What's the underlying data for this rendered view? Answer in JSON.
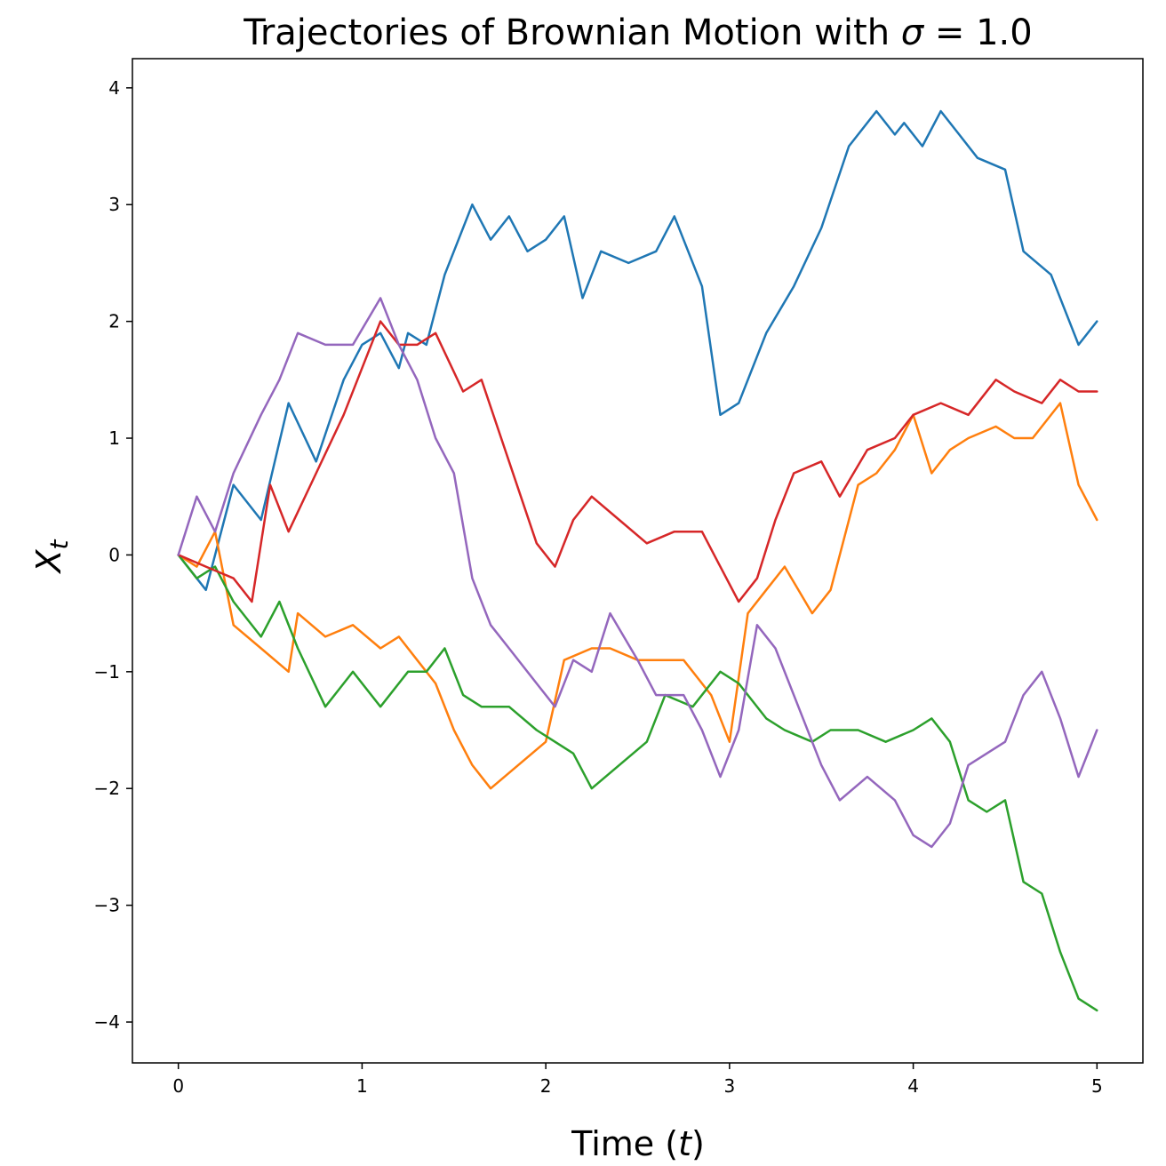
{
  "chart_data": {
    "type": "line",
    "title": "Trajectories of Brownian Motion with σ = 1.0",
    "title_parts": {
      "prefix": "Trajectories of Brownian Motion with ",
      "symbol": "σ",
      "suffix": " = 1.0"
    },
    "xlabel": "Time (t)",
    "xlabel_parts": {
      "prefix": "Time (",
      "symbol": "t",
      "suffix": ")"
    },
    "ylabel": "X_t",
    "ylabel_parts": {
      "base": "X",
      "subscript": "t"
    },
    "xlim": [
      -0.25,
      5.25
    ],
    "ylim": [
      -4.35,
      4.25
    ],
    "x_ticks": [
      0,
      1,
      2,
      3,
      4,
      5
    ],
    "y_ticks": [
      -4,
      -3,
      -2,
      -1,
      0,
      1,
      2,
      3,
      4
    ],
    "x_tick_labels": [
      "0",
      "1",
      "2",
      "3",
      "4",
      "5"
    ],
    "y_tick_labels": [
      "−4",
      "−3",
      "−2",
      "−1",
      "0",
      "1",
      "2",
      "3",
      "4"
    ],
    "grid": false,
    "legend": "none",
    "series": [
      {
        "color": "#1f77b4",
        "x": [
          0,
          0.15,
          0.3,
          0.45,
          0.6,
          0.75,
          0.9,
          1.0,
          1.1,
          1.2,
          1.25,
          1.35,
          1.45,
          1.6,
          1.7,
          1.8,
          1.9,
          2.0,
          2.1,
          2.2,
          2.3,
          2.45,
          2.6,
          2.7,
          2.85,
          2.95,
          3.05,
          3.2,
          3.35,
          3.5,
          3.65,
          3.8,
          3.9,
          3.95,
          4.05,
          4.15,
          4.25,
          4.35,
          4.5,
          4.6,
          4.75,
          4.9,
          5.0
        ],
        "y": [
          0.0,
          -0.3,
          0.6,
          0.3,
          1.3,
          0.8,
          1.5,
          1.8,
          1.9,
          1.6,
          1.9,
          1.8,
          2.4,
          3.0,
          2.7,
          2.9,
          2.6,
          2.7,
          2.9,
          2.2,
          2.6,
          2.5,
          2.6,
          2.9,
          2.3,
          1.2,
          1.3,
          1.9,
          2.3,
          2.8,
          3.5,
          3.8,
          3.6,
          3.7,
          3.5,
          3.8,
          3.6,
          3.4,
          3.3,
          2.6,
          2.4,
          1.8,
          2.0
        ]
      },
      {
        "color": "#ff7f0e",
        "x": [
          0,
          0.1,
          0.2,
          0.3,
          0.45,
          0.6,
          0.65,
          0.8,
          0.95,
          1.1,
          1.2,
          1.3,
          1.4,
          1.5,
          1.6,
          1.7,
          1.85,
          2.0,
          2.1,
          2.25,
          2.35,
          2.5,
          2.65,
          2.75,
          2.9,
          3.0,
          3.1,
          3.2,
          3.3,
          3.45,
          3.55,
          3.7,
          3.8,
          3.9,
          4.0,
          4.1,
          4.2,
          4.3,
          4.45,
          4.55,
          4.65,
          4.8,
          4.9,
          5.0
        ],
        "y": [
          0.0,
          -0.1,
          0.2,
          -0.6,
          -0.8,
          -1.0,
          -0.5,
          -0.7,
          -0.6,
          -0.8,
          -0.7,
          -0.9,
          -1.1,
          -1.5,
          -1.8,
          -2.0,
          -1.8,
          -1.6,
          -0.9,
          -0.8,
          -0.8,
          -0.9,
          -0.9,
          -0.9,
          -1.2,
          -1.6,
          -0.5,
          -0.3,
          -0.1,
          -0.5,
          -0.3,
          0.6,
          0.7,
          0.9,
          1.2,
          0.7,
          0.9,
          1.0,
          1.1,
          1.0,
          1.0,
          1.3,
          0.6,
          0.3
        ]
      },
      {
        "color": "#2ca02c",
        "x": [
          0,
          0.1,
          0.2,
          0.3,
          0.45,
          0.55,
          0.65,
          0.8,
          0.95,
          1.1,
          1.25,
          1.35,
          1.45,
          1.55,
          1.65,
          1.8,
          1.95,
          2.05,
          2.15,
          2.25,
          2.4,
          2.55,
          2.65,
          2.8,
          2.95,
          3.05,
          3.2,
          3.3,
          3.45,
          3.55,
          3.7,
          3.85,
          4.0,
          4.1,
          4.2,
          4.3,
          4.4,
          4.5,
          4.6,
          4.7,
          4.8,
          4.9,
          5.0
        ],
        "y": [
          0.0,
          -0.2,
          -0.1,
          -0.4,
          -0.7,
          -0.4,
          -0.8,
          -1.3,
          -1.0,
          -1.3,
          -1.0,
          -1.0,
          -0.8,
          -1.2,
          -1.3,
          -1.3,
          -1.5,
          -1.6,
          -1.7,
          -2.0,
          -1.8,
          -1.6,
          -1.2,
          -1.3,
          -1.0,
          -1.1,
          -1.4,
          -1.5,
          -1.6,
          -1.5,
          -1.5,
          -1.6,
          -1.5,
          -1.4,
          -1.6,
          -2.1,
          -2.2,
          -2.1,
          -2.8,
          -2.9,
          -3.4,
          -3.8,
          -3.9
        ]
      },
      {
        "color": "#d62728",
        "x": [
          0,
          0.15,
          0.3,
          0.4,
          0.5,
          0.6,
          0.75,
          0.9,
          1.0,
          1.1,
          1.2,
          1.3,
          1.4,
          1.55,
          1.65,
          1.8,
          1.95,
          2.05,
          2.15,
          2.25,
          2.4,
          2.55,
          2.7,
          2.85,
          2.95,
          3.05,
          3.15,
          3.25,
          3.35,
          3.5,
          3.6,
          3.75,
          3.9,
          4.0,
          4.15,
          4.3,
          4.45,
          4.55,
          4.7,
          4.8,
          4.9,
          5.0
        ],
        "y": [
          0.0,
          -0.1,
          -0.2,
          -0.4,
          0.6,
          0.2,
          0.7,
          1.2,
          1.6,
          2.0,
          1.8,
          1.8,
          1.9,
          1.4,
          1.5,
          0.8,
          0.1,
          -0.1,
          0.3,
          0.5,
          0.3,
          0.1,
          0.2,
          0.2,
          -0.1,
          -0.4,
          -0.2,
          0.3,
          0.7,
          0.8,
          0.5,
          0.9,
          1.0,
          1.2,
          1.3,
          1.2,
          1.5,
          1.4,
          1.3,
          1.5,
          1.4,
          1.4
        ]
      },
      {
        "color": "#9467bd",
        "x": [
          0,
          0.1,
          0.2,
          0.3,
          0.45,
          0.55,
          0.65,
          0.8,
          0.95,
          1.1,
          1.2,
          1.3,
          1.4,
          1.5,
          1.6,
          1.7,
          1.8,
          1.95,
          2.05,
          2.15,
          2.25,
          2.35,
          2.5,
          2.6,
          2.75,
          2.85,
          2.95,
          3.05,
          3.15,
          3.25,
          3.35,
          3.5,
          3.6,
          3.75,
          3.9,
          4.0,
          4.1,
          4.2,
          4.3,
          4.4,
          4.5,
          4.6,
          4.7,
          4.8,
          4.9,
          5.0
        ],
        "y": [
          0.0,
          0.5,
          0.2,
          0.7,
          1.2,
          1.5,
          1.9,
          1.8,
          1.8,
          2.2,
          1.8,
          1.5,
          1.0,
          0.7,
          -0.2,
          -0.6,
          -0.8,
          -1.1,
          -1.3,
          -0.9,
          -1.0,
          -0.5,
          -0.9,
          -1.2,
          -1.2,
          -1.5,
          -1.9,
          -1.5,
          -0.6,
          -0.8,
          -1.2,
          -1.8,
          -2.1,
          -1.9,
          -2.1,
          -2.4,
          -2.5,
          -2.3,
          -1.8,
          -1.7,
          -1.6,
          -1.2,
          -1.0,
          -1.4,
          -1.9,
          -1.5
        ]
      }
    ]
  }
}
